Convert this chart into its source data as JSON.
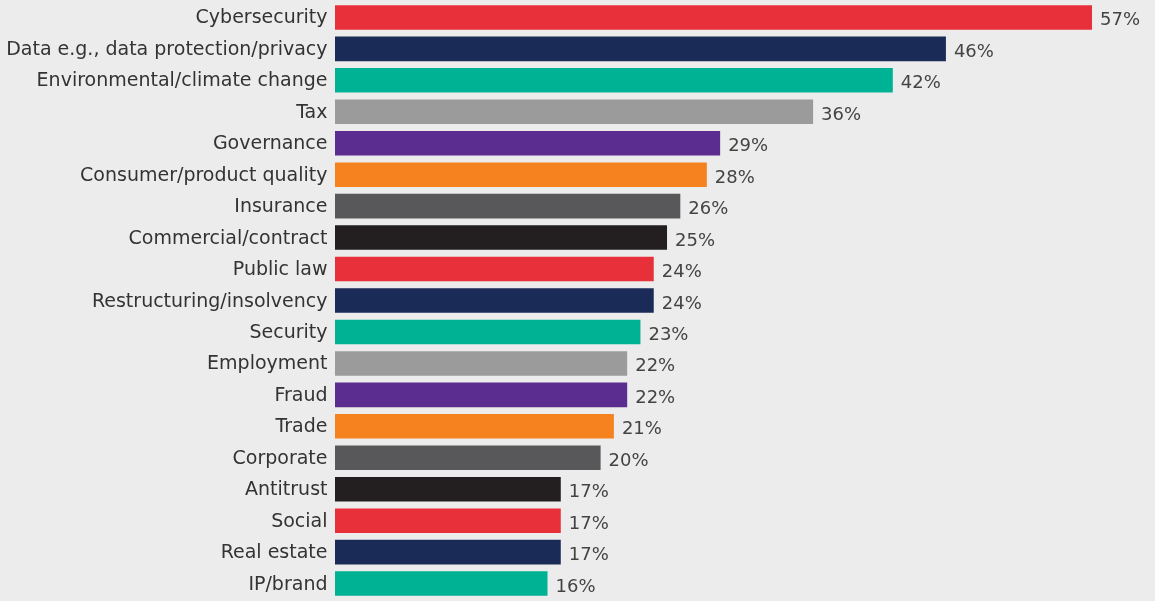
{
  "chart_data": {
    "type": "bar",
    "orientation": "horizontal",
    "categories": [
      "Cybersecurity",
      "Data e.g., data protection/privacy",
      "Environmental/climate change",
      "Tax",
      "Governance",
      "Consumer/product quality",
      "Insurance",
      "Commercial/contract",
      "Public law",
      "Restructuring/insolvency",
      "Security",
      "Employment",
      "Fraud",
      "Trade",
      "Corporate",
      "Antitrust",
      "Social",
      "Real estate",
      "IP/brand"
    ],
    "values": [
      57,
      46,
      42,
      36,
      29,
      28,
      26,
      25,
      24,
      24,
      23,
      22,
      22,
      21,
      20,
      17,
      17,
      17,
      16
    ],
    "value_labels": [
      "57%",
      "46%",
      "42%",
      "36%",
      "29%",
      "28%",
      "26%",
      "25%",
      "24%",
      "24%",
      "23%",
      "22%",
      "22%",
      "21%",
      "20%",
      "17%",
      "17%",
      "17%",
      "16%"
    ],
    "colors": [
      "#e8303a",
      "#1a2b57",
      "#00b294",
      "#9b9b9b",
      "#5c2d91",
      "#f5821f",
      "#58585a",
      "#231f20",
      "#e8303a",
      "#1a2b57",
      "#00b294",
      "#9b9b9b",
      "#5c2d91",
      "#f5821f",
      "#58585a",
      "#231f20",
      "#e8303a",
      "#1a2b57",
      "#00b294"
    ],
    "legend": false,
    "grid": false
  }
}
